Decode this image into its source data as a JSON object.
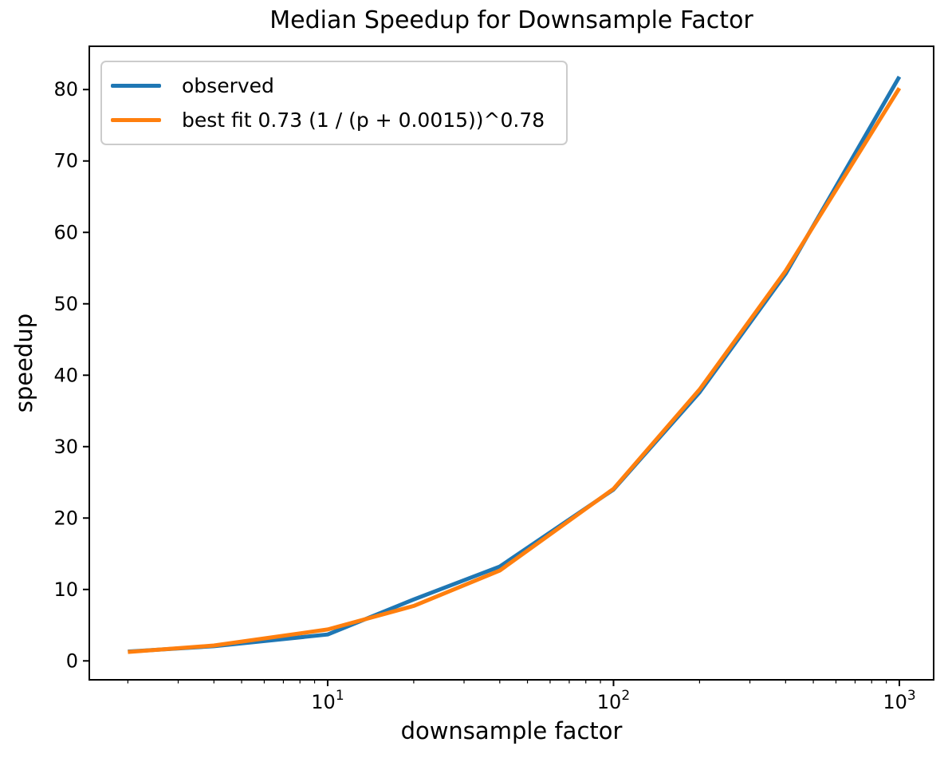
{
  "title": "Median Speedup for Downsample Factor",
  "colors": {
    "observed": "#1f77b4",
    "best_fit": "#ff7f0e",
    "spine": "#000000",
    "legend_border": "#cccccc"
  },
  "legend": {
    "position": "upper left",
    "entries": [
      {
        "label": "observed",
        "color": "#1f77b4"
      },
      {
        "label": "best fit 0.73 (1 / (p + 0.0015))^0.78",
        "color": "#ff7f0e"
      }
    ]
  },
  "chart_data": {
    "type": "line",
    "title": "Median Speedup for Downsample Factor",
    "xlabel": "downsample factor",
    "ylabel": "speedup",
    "xscale": "log",
    "yscale": "linear",
    "xlim": [
      1.466,
      1318
    ],
    "ylim": [
      -2.65,
      86.06
    ],
    "grid": false,
    "legend_position": "upper left",
    "x": [
      2,
      4,
      10,
      20,
      40,
      100,
      200,
      400,
      1000
    ],
    "series": [
      {
        "name": "observed",
        "color": "#1f77b4",
        "values": [
          1.3,
          2.05,
          3.7,
          8.6,
          13.2,
          24.0,
          37.6,
          54.2,
          81.8
        ]
      },
      {
        "name": "best fit 0.73 (1 / (p + 0.0015))^0.78",
        "color": "#ff7f0e",
        "values": [
          1.25,
          2.15,
          4.4,
          7.7,
          12.65,
          24.1,
          38.0,
          54.6,
          80.2
        ]
      }
    ],
    "x_ticks": [
      {
        "value": 10,
        "base": "10",
        "exponent": "1"
      },
      {
        "value": 100,
        "base": "10",
        "exponent": "2"
      },
      {
        "value": 1000,
        "base": "10",
        "exponent": "3"
      }
    ],
    "y_ticks": [
      {
        "value": 0,
        "label": "0"
      },
      {
        "value": 10,
        "label": "10"
      },
      {
        "value": 20,
        "label": "20"
      },
      {
        "value": 30,
        "label": "30"
      },
      {
        "value": 40,
        "label": "40"
      },
      {
        "value": 50,
        "label": "50"
      },
      {
        "value": 60,
        "label": "60"
      },
      {
        "value": 70,
        "label": "70"
      },
      {
        "value": 80,
        "label": "80"
      }
    ]
  }
}
